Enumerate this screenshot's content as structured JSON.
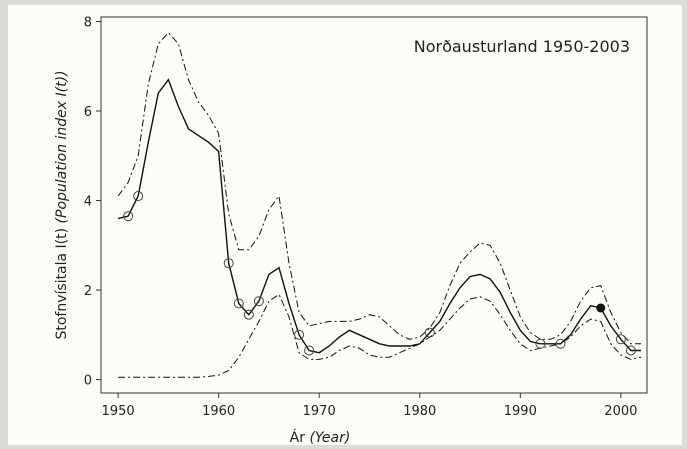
{
  "chart_data": {
    "type": "line",
    "title": "Norðausturland 1950-2003",
    "xlabel": "Ár",
    "xlabel_note": "(Year)",
    "ylabel": "Stofnvísitala I(t)",
    "ylabel_note": "(Population index I(t))",
    "x": [
      1950,
      1951,
      1952,
      1953,
      1954,
      1955,
      1956,
      1957,
      1958,
      1959,
      1960,
      1961,
      1962,
      1963,
      1964,
      1965,
      1966,
      1967,
      1968,
      1969,
      1970,
      1971,
      1972,
      1973,
      1974,
      1975,
      1976,
      1977,
      1978,
      1979,
      1980,
      1981,
      1982,
      1983,
      1984,
      1985,
      1986,
      1987,
      1988,
      1989,
      1990,
      1991,
      1992,
      1993,
      1994,
      1995,
      1996,
      1997,
      1998,
      1999,
      2000,
      2001,
      2002
    ],
    "series": [
      {
        "color": "#111111",
        "style": "solid",
        "values": [
          3.6,
          3.65,
          4.1,
          5.3,
          6.4,
          6.7,
          6.1,
          5.6,
          5.45,
          5.3,
          5.1,
          2.6,
          1.7,
          1.45,
          1.75,
          2.35,
          2.5,
          1.7,
          1.0,
          0.65,
          0.6,
          0.75,
          0.95,
          1.1,
          1.0,
          0.9,
          0.8,
          0.75,
          0.75,
          0.75,
          0.8,
          1.05,
          1.3,
          1.7,
          2.05,
          2.3,
          2.35,
          2.25,
          1.95,
          1.5,
          1.1,
          0.85,
          0.8,
          0.8,
          0.8,
          1.0,
          1.35,
          1.65,
          1.6,
          1.2,
          0.9,
          0.65,
          0.65
        ]
      },
      {
        "color": "#111111",
        "style": "dashdot",
        "values": [
          4.1,
          4.4,
          5.0,
          6.6,
          7.5,
          7.75,
          7.5,
          6.7,
          6.2,
          5.9,
          5.5,
          3.7,
          2.9,
          2.9,
          3.2,
          3.8,
          4.1,
          2.6,
          1.5,
          1.2,
          1.25,
          1.3,
          1.3,
          1.3,
          1.35,
          1.45,
          1.4,
          1.2,
          1.0,
          0.9,
          0.95,
          1.15,
          1.5,
          2.1,
          2.6,
          2.85,
          3.05,
          3.0,
          2.6,
          2.0,
          1.4,
          1.05,
          0.9,
          0.9,
          1.0,
          1.3,
          1.75,
          2.05,
          2.1,
          1.5,
          1.05,
          0.8,
          0.8
        ]
      },
      {
        "color": "#111111",
        "style": "dashdot",
        "values": [
          0.05,
          0.05,
          0.05,
          0.05,
          0.05,
          0.05,
          0.05,
          0.05,
          0.05,
          0.07,
          0.1,
          0.2,
          0.5,
          0.9,
          1.3,
          1.75,
          1.9,
          1.4,
          0.6,
          0.45,
          0.45,
          0.5,
          0.65,
          0.75,
          0.7,
          0.55,
          0.5,
          0.5,
          0.6,
          0.7,
          0.8,
          0.95,
          1.1,
          1.35,
          1.6,
          1.8,
          1.85,
          1.75,
          1.45,
          1.1,
          0.8,
          0.65,
          0.7,
          0.75,
          0.8,
          0.95,
          1.2,
          1.35,
          1.3,
          0.8,
          0.55,
          0.45,
          0.5
        ]
      }
    ],
    "points": {
      "color": "#444444",
      "x": [
        1951,
        1952,
        1961,
        1962,
        1963,
        1964,
        1968,
        1969,
        1981,
        1992,
        1994,
        2000,
        2001
      ],
      "y": [
        3.65,
        4.1,
        2.6,
        1.7,
        1.45,
        1.75,
        1.0,
        0.65,
        1.05,
        0.8,
        0.8,
        0.9,
        0.65
      ]
    },
    "highlight": {
      "color": "#111111",
      "x": [
        1998
      ],
      "y": [
        1.6
      ]
    },
    "xlim": [
      1948.3,
      2002.6
    ],
    "ylim": [
      -0.3,
      8.1
    ],
    "xticks": [
      1950,
      1960,
      1970,
      1980,
      1990,
      2000
    ],
    "yticks": [
      0,
      2,
      4,
      6,
      8
    ],
    "grid": false
  }
}
